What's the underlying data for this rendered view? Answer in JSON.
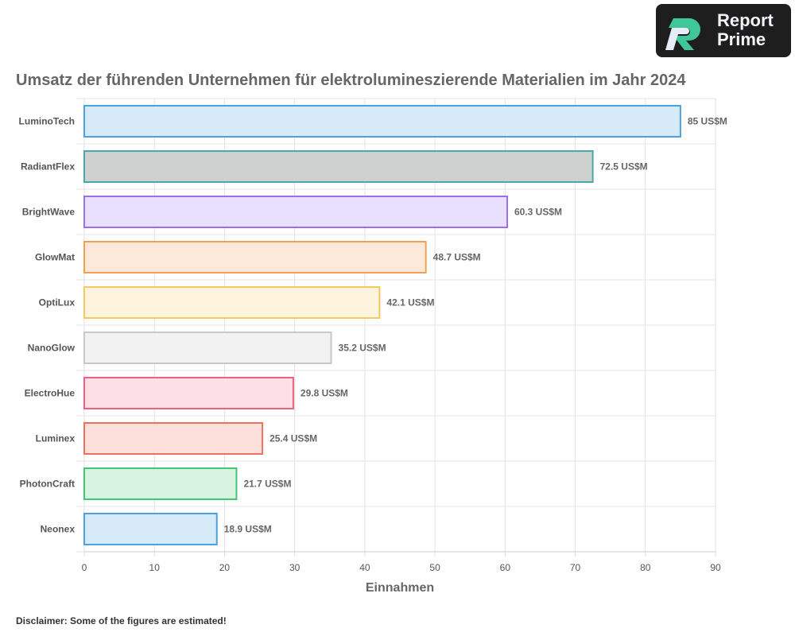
{
  "logo": {
    "line1": "Report",
    "line2": "Prime"
  },
  "disclaimer": "Disclaimer: Some of the figures are estimated!",
  "chart_data": {
    "type": "bar",
    "orientation": "horizontal",
    "title": "Umsatz der führenden Unternehmen für elektrolumineszierende Materialien im Jahr 2024",
    "xlabel": "Einnahmen",
    "ylabel": "",
    "xlim": [
      0,
      90
    ],
    "xticks": [
      0,
      10,
      20,
      30,
      40,
      50,
      60,
      70,
      80,
      90
    ],
    "grid": true,
    "value_suffix": " US$M",
    "categories": [
      "LuminoTech",
      "RadiantFlex",
      "BrightWave",
      "GlowMat",
      "OptiLux",
      "NanoGlow",
      "ElectroHue",
      "Luminex",
      "PhotonCraft",
      "Neonex"
    ],
    "values": [
      85,
      72.5,
      60.3,
      48.7,
      42.1,
      35.2,
      29.8,
      25.4,
      21.7,
      18.9
    ],
    "data_labels": [
      "85 US$M",
      "72.5 US$M",
      "60.3 US$M",
      "48.7 US$M",
      "42.1 US$M",
      "35.2 US$M",
      "29.8 US$M",
      "25.4 US$M",
      "21.7 US$M",
      "18.9 US$M"
    ],
    "border_colors": [
      "#4aa3e0",
      "#4aa8a8",
      "#9b6fe8",
      "#f0a050",
      "#f5c860",
      "#c8c8c8",
      "#f06080",
      "#f07060",
      "#40c870",
      "#4aa3e0"
    ],
    "fill_colors": [
      "#d6eaf8",
      "#cfd1d0",
      "#e8e0fd",
      "#fde9d9",
      "#fef3dc",
      "#f2f2f2",
      "#fde0e6",
      "#fde0dc",
      "#d8f3e2",
      "#d6eaf8"
    ]
  }
}
